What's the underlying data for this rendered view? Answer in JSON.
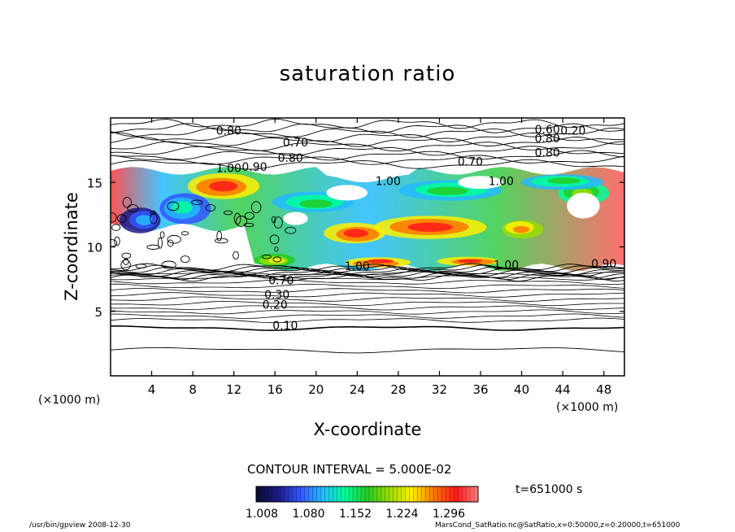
{
  "chart_data": {
    "type": "heatmap",
    "title": "saturation ratio",
    "xlabel": "X-coordinate",
    "ylabel": "Z-coordinate",
    "x_unit": "(×1000 m)",
    "z_unit": "(×1000 m)",
    "x_range": [
      0,
      50
    ],
    "z_range": [
      0,
      20
    ],
    "x_ticks": [
      4,
      8,
      12,
      16,
      20,
      24,
      28,
      32,
      36,
      40,
      44,
      48
    ],
    "z_ticks": [
      5,
      10,
      15
    ],
    "contour_interval_label": "CONTOUR INTERVAL = 5.000E-02",
    "time_label": "t=651000 s",
    "colorbar": {
      "ticks": [
        "1.008",
        "1.080",
        "1.152",
        "1.224",
        "1.296"
      ],
      "colors": [
        "#0a0a30",
        "#1b1b8a",
        "#3355ff",
        "#22bbff",
        "#00ff99",
        "#22cc22",
        "#99dd00",
        "#ffee00",
        "#ff7700",
        "#ff1a1a",
        "#ff7f7f"
      ]
    },
    "contour_labels": [
      {
        "text": "0.10",
        "x": 17.0,
        "z": 3.6
      },
      {
        "text": "0.20",
        "x": 16.0,
        "z": 5.2
      },
      {
        "text": "0.30",
        "x": 16.2,
        "z": 6.0
      },
      {
        "text": "0.70",
        "x": 16.6,
        "z": 7.1
      },
      {
        "text": "1.00",
        "x": 24.0,
        "z": 8.2
      },
      {
        "text": "1.00",
        "x": 38.5,
        "z": 8.3
      },
      {
        "text": "0.90",
        "x": 48.0,
        "z": 8.4
      },
      {
        "text": "1.00",
        "x": 11.5,
        "z": 15.8
      },
      {
        "text": "0.90",
        "x": 14.0,
        "z": 15.9
      },
      {
        "text": "1.00",
        "x": 27.0,
        "z": 14.8
      },
      {
        "text": "1.00",
        "x": 38.0,
        "z": 14.8
      },
      {
        "text": "0.70",
        "x": 35.0,
        "z": 16.3
      },
      {
        "text": "0.80",
        "x": 17.5,
        "z": 16.6
      },
      {
        "text": "0.70",
        "x": 18.0,
        "z": 17.8
      },
      {
        "text": "0.80",
        "x": 11.5,
        "z": 18.7
      },
      {
        "text": "0.60",
        "x": 42.5,
        "z": 18.8
      },
      {
        "text": "0.20",
        "x": 45.0,
        "z": 18.7
      },
      {
        "text": "0.80",
        "x": 42.5,
        "z": 18.1
      },
      {
        "text": "0.80",
        "x": 42.5,
        "z": 17.0
      }
    ]
  },
  "footer": {
    "left": "/usr/bin/gpview   2008-12-30",
    "right": "MarsCond_SatRatio.nc@SatRatio,x=0:50000,z=0:20000,t=651000"
  }
}
